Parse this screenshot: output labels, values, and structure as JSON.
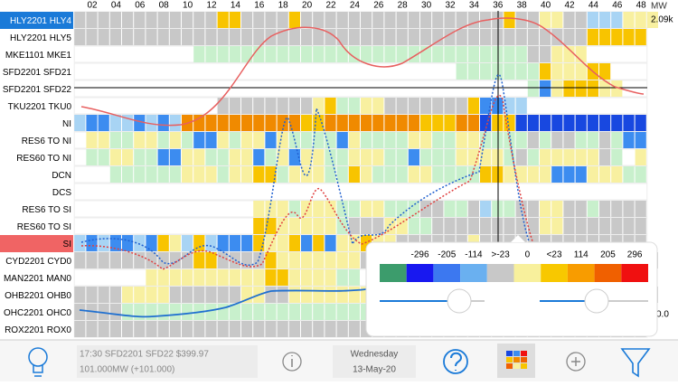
{
  "header": {
    "columns": [
      "02",
      "04",
      "06",
      "08",
      "10",
      "12",
      "14",
      "16",
      "18",
      "20",
      "22",
      "24",
      "26",
      "28",
      "30",
      "32",
      "34",
      "36",
      "38",
      "40",
      "42",
      "44",
      "46",
      "48"
    ],
    "unit": "MW",
    "max_label": "2.09k",
    "min_label": "0.0"
  },
  "palette": {
    "g": "#c8c8c8",
    "y": "#f8f0a0",
    "o": "#f8c400",
    "O": "#f08a00",
    "b": "#3c8cf0",
    "B": "#1848e0",
    "l": "#c8f0cc",
    "p": "#a8d4f4"
  },
  "rows": [
    {
      "label": "HLY2201 HLY4",
      "highlight": "#1a7ad8",
      "cells": "ggggggggggggooggggogggggggggggggggggoggyyggpppyyy"
    },
    {
      "label": "HLY2201 HLY5",
      "cells": "gggggggggggggggggggggggggggggggggggggggggggooooo"
    },
    {
      "label": "MKE1101 MKE1",
      "cells": "wwwwwwwwwwllllllllllllllllllllllllllllggyyywwwww"
    },
    {
      "label": "SFD2201 SFD21",
      "cells": "wwwwwwwwwwwwwwwwwwwwwwwwwwwwwwwwllllllloyyyoowww"
    },
    {
      "label": "SFD2201 SFD22",
      "cells": "wwwwwwwwwwwwwwwwwwwwwwwwwwwwwwwwwwwwwwlbyoooyyww"
    },
    {
      "label": "TKU2201 TKU0",
      "cells": "wwwwwwwwwwwwggggggggyollyygggggggobbppwwwwwwwwww"
    },
    {
      "label": "NI",
      "cells": "pbbppbpbpOOOOOOOOOOooOOOOOOOOoooOOBooBBBBBBBBBBB"
    },
    {
      "label": "RES6 TO NI",
      "cells": "wyyllyylylbbylyybyllllbyllllyyllyyllllglggllglbb"
    },
    {
      "label": "RES60 TO NI",
      "cells": "wllyyllbbyyllyyblybyyllyyyllblllyyyylglyyyyyglwy"
    },
    {
      "label": "DCN",
      "cells": "wwwllllllyyylyyoolyyylloylllyyllllooyyyybbbyyyll"
    },
    {
      "label": "DCS",
      "cells": "wwwwwwwwwwwwwwwwwwwwwwwwwwwwwwwwwwwwwwwwwwwwwwww"
    },
    {
      "label": "RES6 TO SI",
      "cells": "wwwwwwwwwwwwwwwyyylyyyllyylllggllgpllggyygglgggg"
    },
    {
      "label": "RES60 TO SI",
      "cells": "wwwwwwwwwwwwwwwooyyyyylgggyyllgggggggggyyggggggg"
    },
    {
      "label": "SI",
      "highlight": "#f06464",
      "cells": "pbpbbpboypopbbboyyobobyyoyyggggggygggggggggggggg"
    },
    {
      "label": "CYD2201 CYD0",
      "cells": "ggggggggggooggggoyyyyyyyggggggggggggggggggggggggg"
    },
    {
      "label": "MAN2201 MAN0",
      "cells": "wwwwwwyyyyyyyyyyooyyyyllwwwwwwwwwwwwwwwwwwwwwwww"
    },
    {
      "label": "OHB2201 OHB0",
      "cells": "ggggyyyyggggggyyggyyyyyyyyyyggggggggggggggggggggg"
    },
    {
      "label": "OHC2201 OHC0",
      "cells": "ggggllllllllllllllllllllllllllllllllllllllllllll"
    },
    {
      "label": "ROX2201 ROX0",
      "cells": "gggggggggggggggggggggggggggggggggggggggggggggggg"
    }
  ],
  "legend": {
    "labels": [
      "-296",
      "-205",
      "-114",
      ">-23",
      "0",
      "<23",
      "114",
      "205",
      "296"
    ],
    "colors": [
      "#3c9c6c",
      "#1818f0",
      "#3c78f0",
      "#6ab0f0",
      "#c8c8c8",
      "#f8f09c",
      "#f8c800",
      "#f89c00",
      "#f06000",
      "#f01010"
    ]
  },
  "toolbar": {
    "status_line1": "17:30 SFD2201 SFD22 $399.97",
    "status_line2": "101.000MW (+101.000)",
    "day": "Wednesday",
    "date": "13-May-20"
  }
}
